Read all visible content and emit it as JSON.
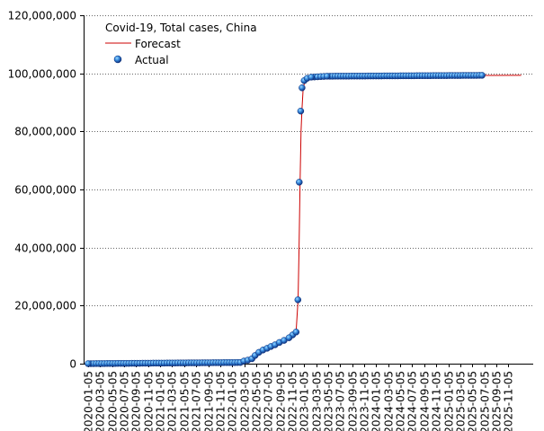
{
  "chart_data": {
    "type": "scatter",
    "title": "Covid-19, Total cases, China",
    "xlabel": "",
    "ylabel": "",
    "ylim": [
      0,
      120000000
    ],
    "y_ticks": [
      {
        "value": 0,
        "label": "0"
      },
      {
        "value": 20000000,
        "label": "20,000,000"
      },
      {
        "value": 40000000,
        "label": "40,000,000"
      },
      {
        "value": 60000000,
        "label": "60,000,000"
      },
      {
        "value": 80000000,
        "label": "80,000,000"
      },
      {
        "value": 100000000,
        "label": "100,000,000"
      },
      {
        "value": 120000000,
        "label": "120,000,000"
      }
    ],
    "x_ticks": [
      "2020-01-05",
      "2020-03-05",
      "2020-05-05",
      "2020-07-05",
      "2020-09-05",
      "2020-11-05",
      "2021-01-05",
      "2021-03-05",
      "2021-05-05",
      "2021-07-05",
      "2021-09-05",
      "2021-11-05",
      "2022-01-05",
      "2022-03-05",
      "2022-05-05",
      "2022-07-05",
      "2022-09-05",
      "2022-11-05",
      "2023-01-05",
      "2023-03-05",
      "2023-05-05",
      "2023-07-05",
      "2023-09-05",
      "2023-11-05",
      "2024-01-05",
      "2024-03-05",
      "2024-05-05",
      "2024-07-05",
      "2024-09-05",
      "2024-11-05",
      "2025-01-05",
      "2025-03-05",
      "2025-05-05",
      "2025-07-05",
      "2025-09-05",
      "2025-11-05"
    ],
    "grid": true,
    "legend_position": "top-left",
    "series": [
      {
        "name": "Forecast",
        "style": "line",
        "color": "#cc0000",
        "x": [
          "2020-01-05",
          "2022-02-15",
          "2022-03-20",
          "2022-04-25",
          "2022-06-01",
          "2022-08-01",
          "2022-10-01",
          "2022-11-25",
          "2022-12-05",
          "2022-12-10",
          "2022-12-15",
          "2022-12-20",
          "2022-12-25",
          "2022-12-31",
          "2023-01-10",
          "2023-02-01",
          "2023-03-01",
          "2023-05-01",
          "2026-01-10"
        ],
        "y": [
          0,
          200000,
          700000,
          2000000,
          4500000,
          6200000,
          8500000,
          11000000,
          22000000,
          40000000,
          62000000,
          80000000,
          88000000,
          95000000,
          97500000,
          98400000,
          98800000,
          99100000,
          99300000
        ]
      },
      {
        "name": "Actual",
        "style": "markers",
        "color": "#1f5fbf",
        "x": [
          "2020-01-05",
          "2022-02-15",
          "2022-03-05",
          "2022-03-25",
          "2022-04-15",
          "2022-05-01",
          "2022-05-20",
          "2022-06-10",
          "2022-07-01",
          "2022-07-20",
          "2022-08-10",
          "2022-09-01",
          "2022-09-25",
          "2022-10-20",
          "2022-11-25",
          "2022-12-04",
          "2022-12-11",
          "2022-12-18",
          "2022-12-25",
          "2023-01-05",
          "2023-01-20",
          "2023-02-10",
          "2023-05-01",
          "2025-06-25"
        ],
        "y": [
          0,
          400000,
          900000,
          1200000,
          1700000,
          2800000,
          3900000,
          4700000,
          5300000,
          5900000,
          6500000,
          7300000,
          8000000,
          8900000,
          10900000,
          22000000,
          62500000,
          87000000,
          95000000,
          97500000,
          98300000,
          98700000,
          99000000,
          99300000
        ]
      }
    ]
  }
}
